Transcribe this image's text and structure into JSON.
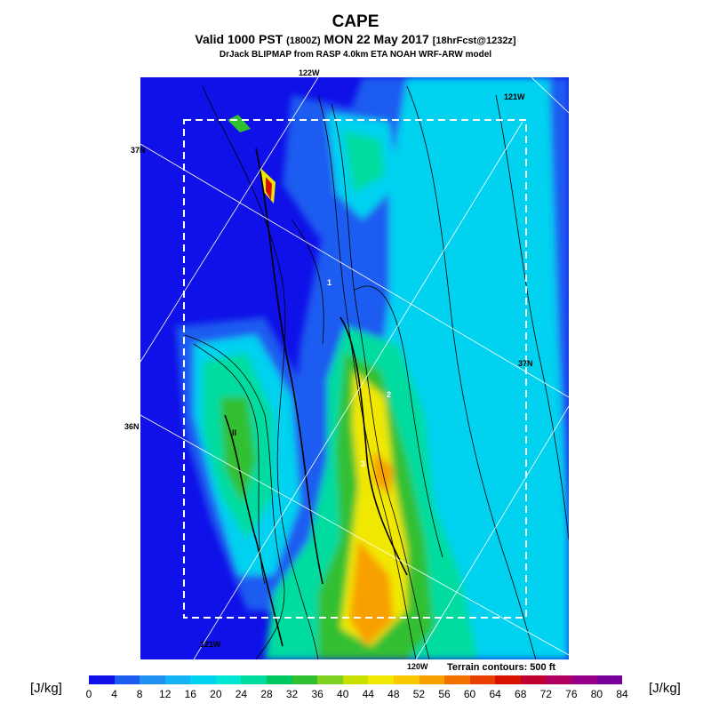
{
  "title": "CAPE",
  "subtitle": {
    "a": "Valid 1000 PST",
    "b": "(1800Z)",
    "c": "MON 22 May 2017",
    "d": "[18hrFcst@1232z]"
  },
  "source": "DrJack BLIPMAP from RASP 4.0km ETA NOAH WRF-ARW model",
  "grid_labels": {
    "lon_122_top": "122W",
    "lon_121_topright": "121W",
    "lat_37_left": "37N",
    "lat_37_right": "37N",
    "lat_36_left": "36N",
    "lon_121_bottom": "121W",
    "lon_120_bottom": "120W"
  },
  "map_marks": {
    "m1": "1",
    "m2": "2",
    "m3": "3",
    "m4": "II"
  },
  "terrain_note": "Terrain contours: 500 ft",
  "colorbar": {
    "unit_left": "[J/kg]",
    "unit_right": "[J/kg]",
    "ticks": [
      "0",
      "4",
      "8",
      "12",
      "16",
      "20",
      "24",
      "28",
      "32",
      "36",
      "40",
      "44",
      "48",
      "52",
      "56",
      "60",
      "64",
      "68",
      "72",
      "76",
      "80",
      "84"
    ],
    "colors": [
      "#1010e8",
      "#1c5cf0",
      "#1e90f0",
      "#14b4f4",
      "#00d2f0",
      "#00e8d4",
      "#00dca0",
      "#00c860",
      "#30c030",
      "#80d020",
      "#c8e000",
      "#f0e800",
      "#f8c800",
      "#f8a000",
      "#f07000",
      "#e84000",
      "#d81000",
      "#c00030",
      "#b00060",
      "#980088",
      "#780098"
    ]
  },
  "colors": {
    "background": "#1010e8",
    "mid_blue": "#1c5cf0",
    "light_blue": "#1e90f0",
    "cyan": "#00d2f0",
    "teal": "#00dca0",
    "green": "#30c030",
    "yellow": "#f0e800",
    "orange": "#f8a000",
    "red": "#d81000"
  }
}
